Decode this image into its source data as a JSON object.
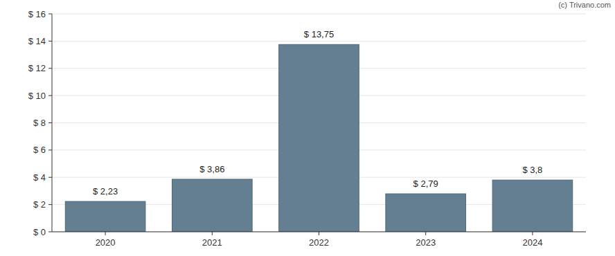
{
  "chart_data": {
    "type": "bar",
    "annotations": [
      "(c) Trivano.com"
    ],
    "categories": [
      "2020",
      "2021",
      "2022",
      "2023",
      "2024"
    ],
    "values": [
      2.23,
      3.86,
      13.75,
      2.79,
      3.8
    ],
    "value_labels": [
      "$ 2,23",
      "$ 3,86",
      "$ 13,75",
      "$ 2,79",
      "$ 3,8"
    ],
    "color": "#647f91",
    "ylim": [
      0,
      16
    ],
    "yticks": [
      {
        "value": 0,
        "label": "$ 0"
      },
      {
        "value": 2,
        "label": "$ 2"
      },
      {
        "value": 4,
        "label": "$ 4"
      },
      {
        "value": 6,
        "label": "$ 6"
      },
      {
        "value": 8,
        "label": "$ 8"
      },
      {
        "value": 10,
        "label": "$ 10"
      },
      {
        "value": 12,
        "label": "$ 12"
      },
      {
        "value": 14,
        "label": "$ 14"
      },
      {
        "value": 16,
        "label": "$ 16"
      }
    ],
    "grid": true,
    "data_labels": true
  }
}
